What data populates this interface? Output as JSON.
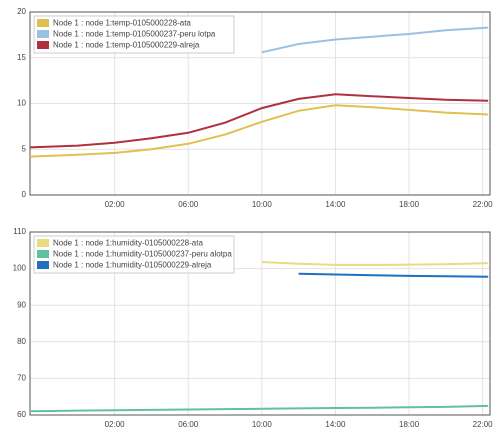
{
  "chart_data": [
    {
      "type": "line",
      "x": [
        -2.6,
        0,
        2,
        4,
        6,
        8,
        10,
        12,
        14,
        16,
        18,
        20,
        22.3
      ],
      "xlim": [
        -2.6,
        22.4
      ],
      "xticks": [
        {
          "value": 2,
          "label": "02:00"
        },
        {
          "value": 6,
          "label": "06:00"
        },
        {
          "value": 10,
          "label": "10:00"
        },
        {
          "value": 14,
          "label": "14:00"
        },
        {
          "value": 18,
          "label": "18:00"
        },
        {
          "value": 22,
          "label": "22:00"
        }
      ],
      "ylim": [
        0,
        20
      ],
      "yticks": [
        0,
        5,
        10,
        15,
        20
      ],
      "grid": true,
      "legend": "top-left",
      "series": [
        {
          "name": "Node 1 : node 1:temp-0105000228-ata",
          "color": "#e0c050",
          "values": [
            4.2,
            4.4,
            4.6,
            5.0,
            5.6,
            6.6,
            8.0,
            9.2,
            9.8,
            9.6,
            9.3,
            9.0,
            8.8
          ]
        },
        {
          "name": "Node 1 : node 1:temp-0105000237-peru lotpa",
          "color": "#9cc0e0",
          "values": [
            null,
            null,
            null,
            null,
            null,
            null,
            15.6,
            16.5,
            17.0,
            17.3,
            17.6,
            18.0,
            18.3
          ]
        },
        {
          "name": "Node 1 : node 1:temp-0105000229-alreja",
          "color": "#b03040",
          "values": [
            5.2,
            5.4,
            5.7,
            6.2,
            6.8,
            7.9,
            9.5,
            10.5,
            11.0,
            10.8,
            10.6,
            10.4,
            10.3
          ]
        }
      ]
    },
    {
      "type": "line",
      "x": [
        -2.6,
        0,
        2,
        4,
        6,
        8,
        10,
        12,
        14,
        16,
        18,
        20,
        22.3
      ],
      "xlim": [
        -2.6,
        22.4
      ],
      "xticks": [
        {
          "value": 2,
          "label": "02:00"
        },
        {
          "value": 6,
          "label": "06:00"
        },
        {
          "value": 10,
          "label": "10:00"
        },
        {
          "value": 14,
          "label": "14:00"
        },
        {
          "value": 18,
          "label": "18:00"
        },
        {
          "value": 22,
          "label": "22:00"
        }
      ],
      "ylim": [
        60,
        110
      ],
      "yticks": [
        60,
        70,
        80,
        90,
        100,
        110
      ],
      "grid": true,
      "legend": "top-left",
      "series": [
        {
          "name": "Node 1 : node 1:humidity-0105000228-ata",
          "color": "#e8dc80",
          "values": [
            null,
            null,
            null,
            null,
            null,
            null,
            101.8,
            101.3,
            101.0,
            101.0,
            101.1,
            101.2,
            101.5
          ]
        },
        {
          "name": "Node 1 : node 1:humidity-0105000237-peru alotpa",
          "color": "#60c0a0",
          "values": [
            61.0,
            61.2,
            61.3,
            61.4,
            61.5,
            61.6,
            61.7,
            61.8,
            61.9,
            62.0,
            62.1,
            62.2,
            62.5
          ]
        },
        {
          "name": "Node 1 : node 1:humidity-0105000229-alreja",
          "color": "#1f70c0",
          "values": [
            null,
            null,
            null,
            null,
            null,
            null,
            null,
            98.6,
            98.4,
            98.2,
            98.0,
            97.9,
            97.8
          ]
        }
      ]
    }
  ]
}
